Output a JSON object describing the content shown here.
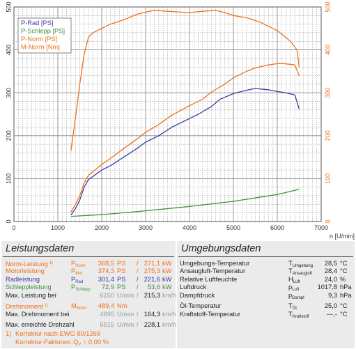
{
  "colors": {
    "p_rad": "#3a3aa6",
    "p_schlepp": "#3f8f3f",
    "p_norm": "#f07018",
    "m_norm": "#f07018",
    "grid": "#888888",
    "panel_bg": "#ebebeb"
  },
  "chart_data": {
    "type": "line",
    "x_label": "n [U/min]",
    "xlim": [
      0,
      7000
    ],
    "x_ticks": [
      0,
      1000,
      2000,
      3000,
      4000,
      5000,
      6000,
      7000
    ],
    "y_left_lim": [
      0,
      500
    ],
    "y_left_ticks": [
      0,
      100,
      200,
      300,
      400,
      500
    ],
    "y_right_lim": [
      0,
      500
    ],
    "y_right_ticks": [
      0,
      100,
      200,
      300,
      400,
      500
    ],
    "grid": true,
    "legend_position": "top-left",
    "series": [
      {
        "name": "P-Rad [PS]",
        "key": "p_rad",
        "axis": "left",
        "x": [
          1300,
          1400,
          1500,
          1600,
          1700,
          1800,
          2000,
          2200,
          2500,
          2800,
          3000,
          3300,
          3600,
          4000,
          4200,
          4500,
          4700,
          5000,
          5300,
          5500,
          5800,
          6000,
          6150,
          6400,
          6500
        ],
        "y": [
          15,
          30,
          50,
          80,
          98,
          105,
          120,
          130,
          150,
          170,
          185,
          200,
          220,
          240,
          250,
          268,
          285,
          298,
          306,
          310,
          307,
          303,
          301,
          295,
          262
        ]
      },
      {
        "name": "P-Schlepp [PS]",
        "key": "p_schlepp",
        "axis": "left",
        "x": [
          1300,
          2000,
          3000,
          4000,
          5000,
          6000,
          6500
        ],
        "y": [
          12,
          16,
          25,
          35,
          47,
          63,
          75
        ]
      },
      {
        "name": "P-Norm [PS]",
        "key": "p_norm",
        "axis": "left",
        "x": [
          1300,
          1400,
          1500,
          1600,
          1700,
          1800,
          2000,
          2200,
          2500,
          2800,
          3000,
          3300,
          3600,
          4000,
          4300,
          4500,
          4800,
          5000,
          5300,
          5500,
          5800,
          6000,
          6150,
          6400,
          6500
        ],
        "y": [
          22,
          40,
          60,
          90,
          108,
          116,
          133,
          147,
          170,
          192,
          208,
          226,
          248,
          270,
          285,
          302,
          320,
          335,
          350,
          358,
          365,
          368,
          368,
          365,
          340
        ]
      },
      {
        "name": "M-Norm [Nm]",
        "key": "m_norm",
        "axis": "right",
        "x": [
          1300,
          1400,
          1500,
          1600,
          1700,
          1800,
          2000,
          2200,
          2500,
          2800,
          3000,
          3200,
          3500,
          3800,
          4000,
          4300,
          4600,
          4800,
          5000,
          5300,
          5600,
          6000,
          6300,
          6450,
          6500
        ],
        "y": [
          165,
          240,
          320,
          390,
          430,
          440,
          450,
          460,
          470,
          483,
          488,
          492,
          490,
          488,
          487,
          490,
          492,
          487,
          480,
          475,
          465,
          445,
          420,
          400,
          360
        ]
      }
    ]
  },
  "left_panel": {
    "title": "Leistungsdaten",
    "rows": [
      {
        "label": "Norm-Leistung",
        "note": "1)",
        "sym": "P",
        "sub": "Norm",
        "v1": "368,5",
        "u1": "PS",
        "sep": "/",
        "v2": "271,1",
        "u2": "kW",
        "color": "#f07018"
      },
      {
        "label": "Motorleistung",
        "note": "",
        "sym": "P",
        "sub": "Mot",
        "v1": "374,3",
        "u1": "PS",
        "sep": "/",
        "v2": "275,3",
        "u2": "kW",
        "color": "#f07018"
      },
      {
        "label": "Radleistung",
        "note": "",
        "sym": "P",
        "sub": "Rad",
        "v1": "301,4",
        "u1": "PS",
        "sep": "/",
        "v2": "221,6",
        "u2": "kW",
        "color": "#3a3aa6"
      },
      {
        "label": "Schleppleistung",
        "note": "",
        "sym": "P",
        "sub": "Schlepp",
        "v1": "72,9",
        "u1": "PS",
        "sep": "/",
        "v2": "53,6",
        "u2": "kW",
        "color": "#3f8f3f"
      },
      {
        "label": "Max. Leistung bei",
        "note": "",
        "sym": "",
        "sub": "",
        "v1": "6150",
        "u1": "U/min",
        "sep": "/",
        "v2": "215,3",
        "u2": "km/h",
        "color": "#222222"
      },
      {
        "label": "Drehmoment",
        "note": "1)",
        "sym": "M",
        "sub": "Norm",
        "v1": "489,4",
        "u1": "Nm",
        "sep": "",
        "v2": "",
        "u2": "",
        "color": "#f07018"
      },
      {
        "label": "Max. Drehmoment bei",
        "note": "",
        "sym": "",
        "sub": "",
        "v1": "4695",
        "u1": "U/min",
        "sep": "/",
        "v2": "164,3",
        "u2": "km/h",
        "color": "#222222"
      },
      {
        "label": "Max. erreichte Drehzahl",
        "note": "",
        "sym": "",
        "sub": "",
        "v1": "6515",
        "u1": "U/min",
        "sep": "/",
        "v2": "228,1",
        "u2": "km/h",
        "color": "#222222"
      }
    ],
    "footnote_line1": "Korrektur nach EWG 80/1269",
    "footnote_mark": "1)",
    "footnote_line2_prefix": "Korrektur-Faktoren: Q",
    "footnote_line2_sub": "V",
    "footnote_line2_suffix": "=   0,00 %"
  },
  "right_panel": {
    "title": "Umgebungsdaten",
    "rows": [
      {
        "label": "Umgebungs-Temperatur",
        "sym": "T",
        "sub": "Umgebung",
        "value": "28,5",
        "unit": "°C"
      },
      {
        "label": "Ansaugluft-Temperatur",
        "sym": "T",
        "sub": "Ansaugluft",
        "value": "28,4",
        "unit": "°C"
      },
      {
        "label": "Relative Luftfeuchte",
        "sym": "H",
        "sub": "Luft",
        "value": "24,0",
        "unit": "%"
      },
      {
        "label": "Luftdruck",
        "sym": "p",
        "sub": "Luft",
        "value": "1017,8",
        "unit": "hPa"
      },
      {
        "label": "Dampfdruck",
        "sym": "p",
        "sub": "Dampf",
        "value": "9,3",
        "unit": "hPa"
      },
      {
        "label": "Öl-Temperatur",
        "sym": "T",
        "sub": "Öl",
        "value": "25,0",
        "unit": "°C"
      },
      {
        "label": "Kraftstoff-Temperatur",
        "sym": "T",
        "sub": "Kraftstoff",
        "value": "---,-",
        "unit": "°C"
      }
    ]
  }
}
